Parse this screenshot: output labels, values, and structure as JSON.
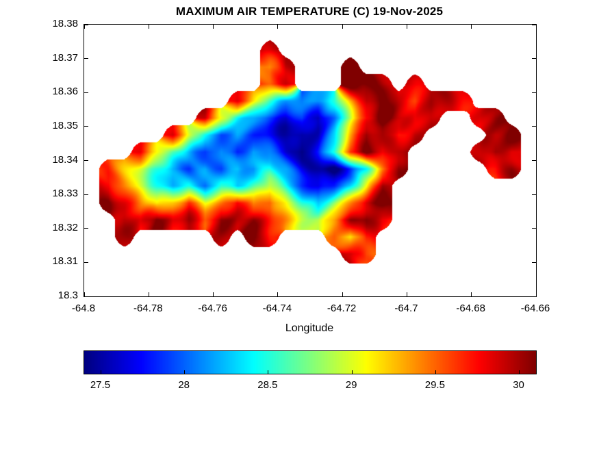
{
  "chart_data": {
    "type": "heatmap",
    "title": "MAXIMUM AIR TEMPERATURE (C) 19-Nov-2025",
    "xlabel": "Longitude",
    "ylabel": "",
    "x_range": [
      -64.8,
      -64.66
    ],
    "y_range": [
      18.3,
      18.38
    ],
    "xticks": [
      -64.8,
      -64.78,
      -64.76,
      -64.74,
      -64.72,
      -64.7,
      -64.68,
      -64.66
    ],
    "xtick_labels": [
      "-64.8",
      "-64.78",
      "-64.76",
      "-64.74",
      "-64.72",
      "-64.7",
      "-64.68",
      "-64.66"
    ],
    "yticks": [
      18.3,
      18.31,
      18.32,
      18.33,
      18.34,
      18.35,
      18.36,
      18.37,
      18.38
    ],
    "ytick_labels": [
      "18.3",
      "18.31",
      "18.32",
      "18.33",
      "18.34",
      "18.35",
      "18.36",
      "18.37",
      "18.38"
    ],
    "colormap": "jet",
    "value_range": [
      27.4,
      30.1
    ],
    "colorbar_orientation": "horizontal",
    "colorbar_ticks": [
      27.5,
      28,
      28.5,
      29,
      29.5,
      30
    ],
    "colorbar_tick_labels": [
      "27.5",
      "28",
      "28.5",
      "29",
      "29.5",
      "30"
    ],
    "grid": {
      "lon_start": -64.7975,
      "lon_step": 0.005,
      "lat_start": 18.3775,
      "lat_step": -0.005,
      "values": [
        [
          null,
          null,
          null,
          null,
          null,
          null,
          null,
          null,
          null,
          null,
          null,
          null,
          null,
          null,
          null,
          null,
          null,
          null,
          null,
          null,
          null,
          null,
          null,
          null,
          null,
          null,
          null,
          null
        ],
        [
          null,
          null,
          null,
          null,
          null,
          null,
          null,
          null,
          null,
          null,
          null,
          29.9,
          null,
          null,
          null,
          null,
          null,
          null,
          null,
          null,
          null,
          null,
          null,
          null,
          null,
          null,
          null,
          null
        ],
        [
          null,
          null,
          null,
          null,
          null,
          null,
          null,
          null,
          null,
          null,
          null,
          29.4,
          30.0,
          null,
          null,
          null,
          30.1,
          null,
          null,
          null,
          null,
          null,
          null,
          null,
          null,
          null,
          null,
          null
        ],
        [
          null,
          null,
          null,
          null,
          null,
          null,
          null,
          null,
          null,
          null,
          null,
          29.6,
          29.9,
          null,
          null,
          null,
          30.2,
          30.1,
          30.0,
          null,
          29.9,
          null,
          null,
          null,
          null,
          null,
          null,
          null
        ],
        [
          null,
          null,
          null,
          null,
          null,
          null,
          null,
          null,
          null,
          29.9,
          29.2,
          28.6,
          28.2,
          28.0,
          28.2,
          28.5,
          29.3,
          30.0,
          30.2,
          29.8,
          29.6,
          30.0,
          29.9,
          29.8,
          null,
          null,
          null,
          null
        ],
        [
          null,
          null,
          null,
          null,
          null,
          null,
          null,
          29.9,
          29.1,
          28.5,
          28.2,
          27.8,
          27.6,
          27.9,
          27.5,
          28.1,
          28.9,
          29.7,
          30.2,
          29.9,
          29.7,
          30.0,
          null,
          null,
          29.8,
          30.0,
          null,
          null
        ],
        [
          null,
          null,
          null,
          null,
          null,
          29.8,
          29.0,
          28.3,
          28.0,
          28.2,
          27.9,
          27.7,
          27.5,
          27.4,
          27.6,
          28.3,
          29.4,
          30.1,
          30.0,
          29.6,
          29.9,
          null,
          null,
          null,
          null,
          29.9,
          30.1,
          null
        ],
        [
          null,
          null,
          null,
          29.8,
          29.2,
          28.6,
          28.2,
          27.9,
          28.1,
          27.8,
          28.2,
          28.0,
          27.6,
          27.4,
          27.7,
          28.5,
          29.7,
          30.1,
          29.8,
          30.0,
          null,
          null,
          null,
          null,
          29.9,
          30.1,
          29.8,
          null
        ],
        [
          null,
          29.7,
          29.3,
          28.9,
          28.5,
          28.1,
          27.9,
          28.2,
          28.0,
          28.3,
          28.1,
          28.4,
          28.1,
          27.7,
          27.5,
          27.4,
          27.8,
          28.4,
          29.3,
          30.1,
          null,
          null,
          null,
          null,
          null,
          29.7,
          30.0,
          null
        ],
        [
          null,
          29.9,
          29.4,
          28.9,
          28.5,
          28.2,
          28.4,
          28.1,
          28.5,
          28.2,
          28.6,
          28.9,
          28.4,
          27.9,
          27.6,
          27.8,
          28.3,
          29.0,
          30.0,
          null,
          null,
          null,
          null,
          null,
          null,
          null,
          null,
          null
        ],
        [
          null,
          30.1,
          29.8,
          29.4,
          29.0,
          29.3,
          29.7,
          29.1,
          29.4,
          29.8,
          29.3,
          29.6,
          29.1,
          28.6,
          28.3,
          28.8,
          29.3,
          29.9,
          30.2,
          null,
          null,
          null,
          null,
          null,
          null,
          null,
          null,
          null
        ],
        [
          null,
          null,
          30.0,
          29.7,
          30.1,
          29.8,
          30.0,
          29.6,
          30.1,
          29.9,
          30.0,
          29.7,
          29.3,
          29.0,
          28.9,
          29.4,
          30.0,
          30.1,
          29.7,
          null,
          null,
          null,
          null,
          null,
          null,
          null,
          null,
          null
        ],
        [
          null,
          null,
          30.0,
          null,
          null,
          null,
          null,
          null,
          30.0,
          null,
          30.1,
          29.8,
          null,
          null,
          null,
          29.5,
          29.1,
          29.8,
          null,
          null,
          null,
          null,
          null,
          null,
          null,
          null,
          null,
          null
        ],
        [
          null,
          null,
          null,
          null,
          null,
          null,
          null,
          null,
          null,
          null,
          null,
          null,
          null,
          null,
          null,
          null,
          30.0,
          29.6,
          null,
          null,
          null,
          null,
          null,
          null,
          null,
          null,
          null,
          null
        ],
        [
          null,
          null,
          null,
          null,
          null,
          null,
          null,
          null,
          null,
          null,
          null,
          null,
          null,
          null,
          null,
          null,
          null,
          null,
          null,
          null,
          null,
          null,
          null,
          null,
          null,
          null,
          null,
          null
        ],
        [
          null,
          null,
          null,
          null,
          null,
          null,
          null,
          null,
          null,
          null,
          null,
          null,
          null,
          null,
          null,
          null,
          null,
          null,
          null,
          null,
          null,
          null,
          null,
          null,
          null,
          null,
          null,
          null
        ]
      ]
    }
  }
}
